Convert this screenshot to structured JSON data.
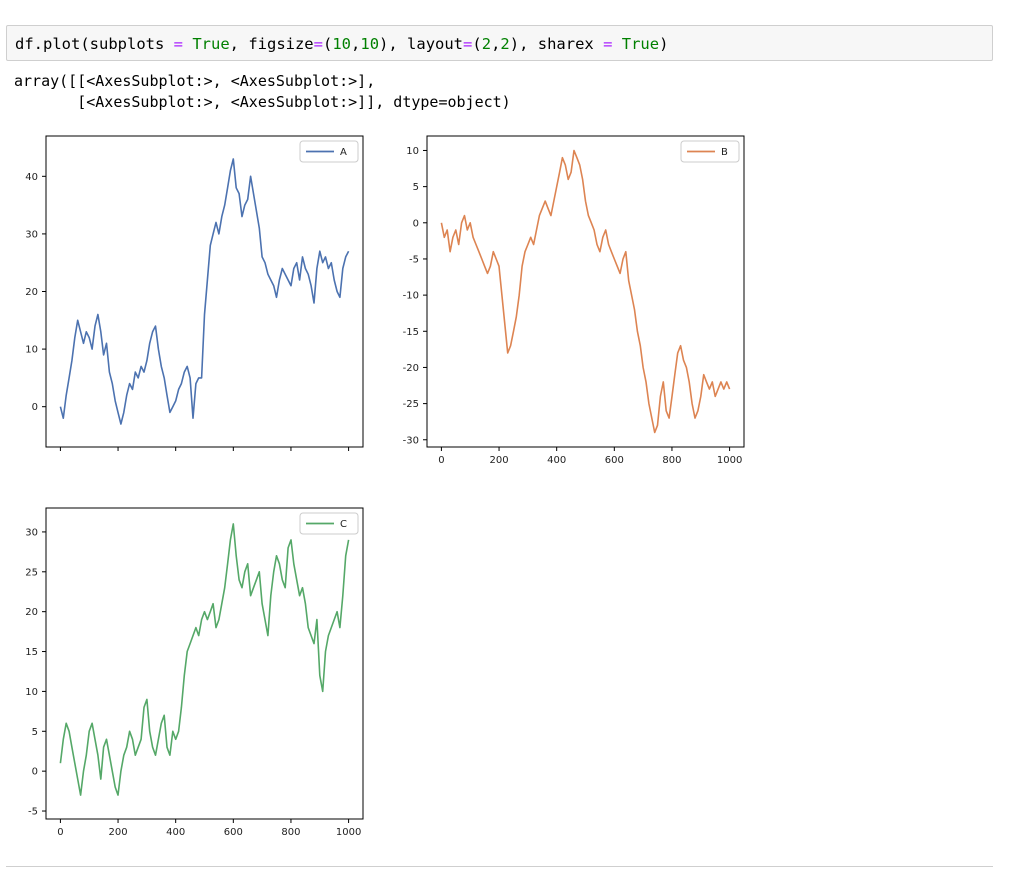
{
  "code_cell": {
    "tokens": [
      {
        "t": "df.plot(subplots ",
        "k": "txt"
      },
      {
        "t": "=",
        "k": "op"
      },
      {
        "t": " ",
        "k": "txt"
      },
      {
        "t": "True",
        "k": "kw"
      },
      {
        "t": ", figsize",
        "k": "txt"
      },
      {
        "t": "=",
        "k": "op"
      },
      {
        "t": "(",
        "k": "txt"
      },
      {
        "t": "10",
        "k": "num"
      },
      {
        "t": ",",
        "k": "txt"
      },
      {
        "t": "10",
        "k": "num"
      },
      {
        "t": "), layout",
        "k": "txt"
      },
      {
        "t": "=",
        "k": "op"
      },
      {
        "t": "(",
        "k": "txt"
      },
      {
        "t": "2",
        "k": "num"
      },
      {
        "t": ",",
        "k": "txt"
      },
      {
        "t": "2",
        "k": "num"
      },
      {
        "t": "), sharex ",
        "k": "txt"
      },
      {
        "t": "=",
        "k": "op"
      },
      {
        "t": " ",
        "k": "txt"
      },
      {
        "t": "True",
        "k": "kw"
      },
      {
        "t": ")",
        "k": "txt"
      }
    ]
  },
  "output": {
    "line1": "array([[<AxesSubplot:>, <AxesSubplot:>],",
    "line2": "       [<AxesSubplot:>, <AxesSubplot:>]], dtype=object)"
  },
  "chart_data": [
    {
      "type": "line",
      "title": "",
      "xlabel": "",
      "ylabel": "",
      "xlim": [
        -50,
        1050
      ],
      "ylim": [
        -7,
        47
      ],
      "xticks": [
        0,
        200,
        400,
        600,
        800,
        1000
      ],
      "xtick_labels_visible": false,
      "yticks": [
        0,
        10,
        20,
        30,
        40
      ],
      "grid": false,
      "legend": "top-right",
      "color": "#4c72b0",
      "series": [
        {
          "name": "A",
          "x": [
            0,
            10,
            20,
            30,
            40,
            50,
            60,
            70,
            80,
            90,
            100,
            110,
            120,
            130,
            140,
            150,
            160,
            170,
            180,
            190,
            200,
            210,
            220,
            230,
            240,
            250,
            260,
            270,
            280,
            290,
            300,
            310,
            320,
            330,
            340,
            350,
            360,
            370,
            380,
            390,
            400,
            410,
            420,
            430,
            440,
            450,
            460,
            470,
            480,
            490,
            500,
            510,
            520,
            530,
            540,
            550,
            560,
            570,
            580,
            590,
            600,
            610,
            620,
            630,
            640,
            650,
            660,
            670,
            680,
            690,
            700,
            710,
            720,
            730,
            740,
            750,
            760,
            770,
            780,
            790,
            800,
            810,
            820,
            830,
            840,
            850,
            860,
            870,
            880,
            890,
            900,
            910,
            920,
            930,
            940,
            950,
            960,
            970,
            980,
            990,
            1000
          ],
          "values": [
            0,
            -2,
            2,
            5,
            8,
            12,
            15,
            13,
            11,
            13,
            12,
            10,
            14,
            16,
            13,
            9,
            11,
            6,
            4,
            1,
            -1,
            -3,
            -1,
            2,
            4,
            3,
            6,
            5,
            7,
            6,
            8,
            11,
            13,
            14,
            10,
            7,
            5,
            2,
            -1,
            0,
            1,
            3,
            4,
            6,
            7,
            5,
            -2,
            4,
            5,
            5,
            16,
            22,
            28,
            30,
            32,
            30,
            33,
            35,
            38,
            41,
            43,
            38,
            37,
            33,
            35,
            36,
            40,
            37,
            34,
            31,
            26,
            25,
            23,
            22,
            21,
            19,
            22,
            24,
            23,
            22,
            21,
            24,
            25,
            22,
            26,
            24,
            23,
            21,
            18,
            24,
            27,
            25,
            26,
            24,
            25,
            22,
            20,
            19,
            24,
            26,
            27
          ]
        }
      ]
    },
    {
      "type": "line",
      "title": "",
      "xlabel": "",
      "ylabel": "",
      "xlim": [
        -50,
        1050
      ],
      "ylim": [
        -31,
        12
      ],
      "xticks": [
        0,
        200,
        400,
        600,
        800,
        1000
      ],
      "yticks": [
        10,
        5,
        0,
        -5,
        -10,
        -15,
        -20,
        -25,
        -30
      ],
      "grid": false,
      "legend": "top-right",
      "color": "#dd8452",
      "series": [
        {
          "name": "B",
          "x": [
            0,
            10,
            20,
            30,
            40,
            50,
            60,
            70,
            80,
            90,
            100,
            110,
            120,
            130,
            140,
            150,
            160,
            170,
            180,
            190,
            200,
            210,
            220,
            230,
            240,
            250,
            260,
            270,
            280,
            290,
            300,
            310,
            320,
            330,
            340,
            350,
            360,
            370,
            380,
            390,
            400,
            410,
            420,
            430,
            440,
            450,
            460,
            470,
            480,
            490,
            500,
            510,
            520,
            530,
            540,
            550,
            560,
            570,
            580,
            590,
            600,
            610,
            620,
            630,
            640,
            650,
            660,
            670,
            680,
            690,
            700,
            710,
            720,
            730,
            740,
            750,
            760,
            770,
            780,
            790,
            800,
            810,
            820,
            830,
            840,
            850,
            860,
            870,
            880,
            890,
            900,
            910,
            920,
            930,
            940,
            950,
            960,
            970,
            980,
            990,
            1000
          ],
          "values": [
            0,
            -2,
            -1,
            -4,
            -2,
            -1,
            -3,
            0,
            1,
            -1,
            0,
            -2,
            -3,
            -4,
            -5,
            -6,
            -7,
            -6,
            -4,
            -5,
            -6,
            -10,
            -14,
            -18,
            -17,
            -15,
            -13,
            -10,
            -6,
            -4,
            -3,
            -2,
            -3,
            -1,
            1,
            2,
            3,
            2,
            1,
            3,
            5,
            7,
            9,
            8,
            6,
            7,
            10,
            9,
            8,
            6,
            3,
            1,
            0,
            -1,
            -3,
            -4,
            -2,
            -1,
            -3,
            -4,
            -5,
            -6,
            -7,
            -5,
            -4,
            -8,
            -10,
            -12,
            -15,
            -17,
            -20,
            -22,
            -25,
            -27,
            -29,
            -28,
            -24,
            -22,
            -26,
            -27,
            -24,
            -21,
            -18,
            -17,
            -19,
            -20,
            -22,
            -25,
            -27,
            -26,
            -24,
            -21,
            -22,
            -23,
            -22,
            -24,
            -23,
            -22,
            -23,
            -22,
            -23
          ]
        }
      ]
    },
    {
      "type": "line",
      "title": "",
      "xlabel": "",
      "ylabel": "",
      "xlim": [
        -50,
        1050
      ],
      "ylim": [
        -6,
        33
      ],
      "xticks": [
        0,
        200,
        400,
        600,
        800,
        1000
      ],
      "yticks": [
        -5,
        0,
        5,
        10,
        15,
        20,
        25,
        30
      ],
      "grid": false,
      "legend": "top-right",
      "color": "#55a868",
      "series": [
        {
          "name": "C",
          "x": [
            0,
            10,
            20,
            30,
            40,
            50,
            60,
            70,
            80,
            90,
            100,
            110,
            120,
            130,
            140,
            150,
            160,
            170,
            180,
            190,
            200,
            210,
            220,
            230,
            240,
            250,
            260,
            270,
            280,
            290,
            300,
            310,
            320,
            330,
            340,
            350,
            360,
            370,
            380,
            390,
            400,
            410,
            420,
            430,
            440,
            450,
            460,
            470,
            480,
            490,
            500,
            510,
            520,
            530,
            540,
            550,
            560,
            570,
            580,
            590,
            600,
            610,
            620,
            630,
            640,
            650,
            660,
            670,
            680,
            690,
            700,
            710,
            720,
            730,
            740,
            750,
            760,
            770,
            780,
            790,
            800,
            810,
            820,
            830,
            840,
            850,
            860,
            870,
            880,
            890,
            900,
            910,
            920,
            930,
            940,
            950,
            960,
            970,
            980,
            990,
            1000
          ],
          "values": [
            1,
            4,
            6,
            5,
            3,
            1,
            -1,
            -3,
            0,
            2,
            5,
            6,
            4,
            2,
            -1,
            3,
            4,
            2,
            0,
            -2,
            -3,
            0,
            2,
            3,
            5,
            4,
            2,
            3,
            4,
            8,
            9,
            5,
            3,
            2,
            4,
            6,
            7,
            3,
            2,
            5,
            4,
            5,
            8,
            12,
            15,
            16,
            17,
            18,
            17,
            19,
            20,
            19,
            20,
            21,
            18,
            19,
            21,
            23,
            26,
            29,
            31,
            27,
            24,
            23,
            25,
            26,
            22,
            23,
            24,
            25,
            21,
            19,
            17,
            22,
            25,
            27,
            26,
            24,
            23,
            28,
            29,
            26,
            24,
            22,
            23,
            21,
            18,
            17,
            16,
            19,
            12,
            10,
            15,
            17,
            18,
            19,
            20,
            18,
            22,
            27,
            29
          ]
        }
      ]
    }
  ]
}
